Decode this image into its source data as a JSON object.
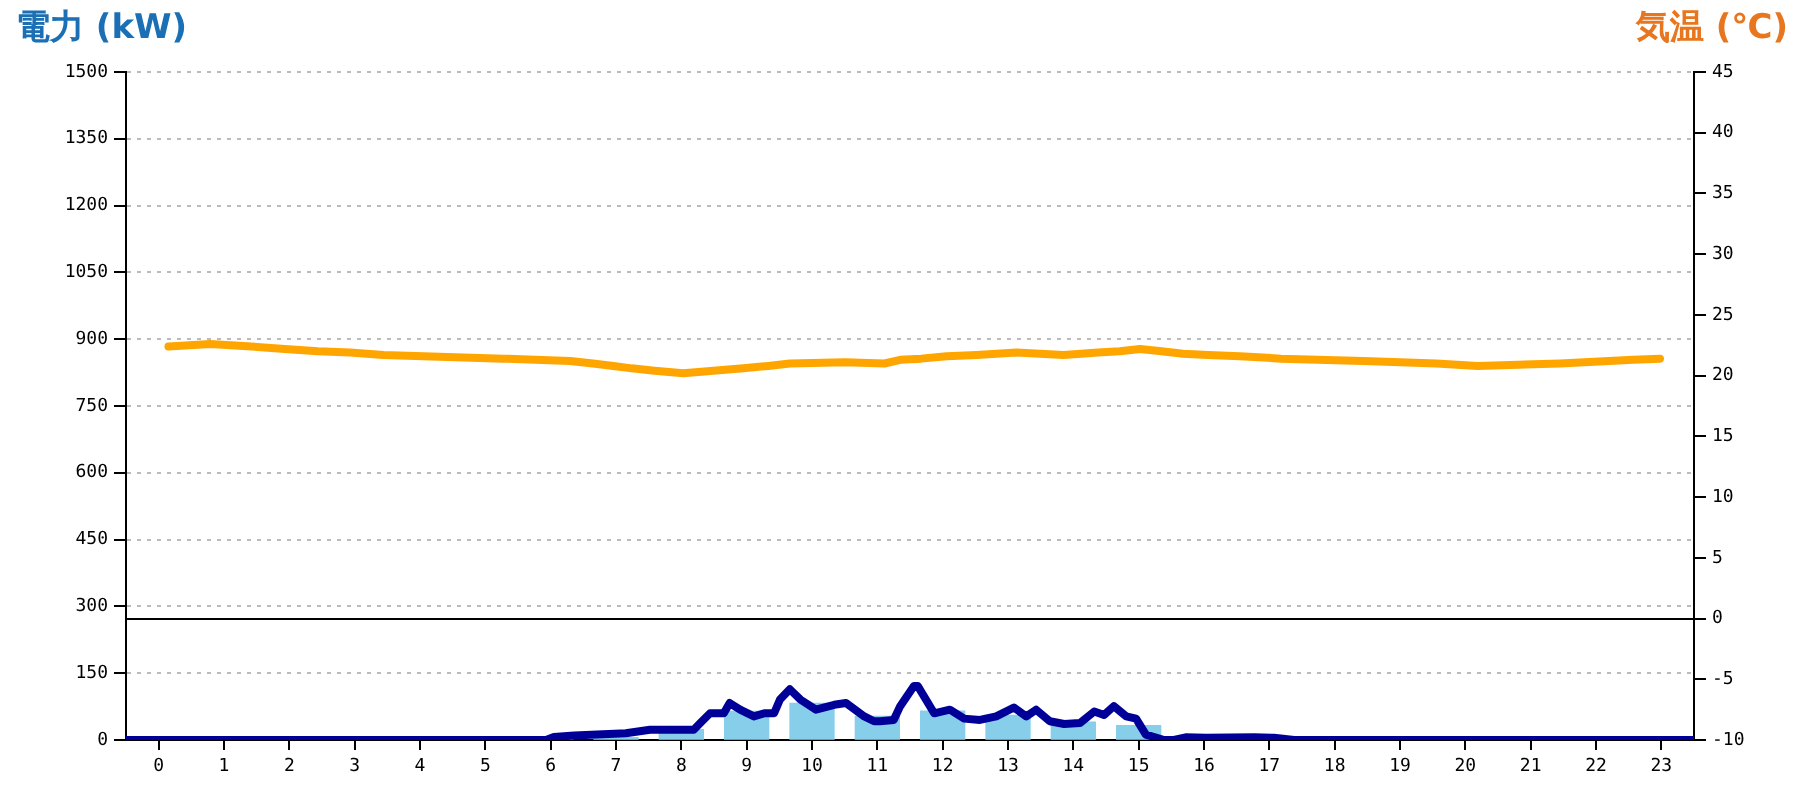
{
  "chart_data": {
    "type": "bar",
    "ylabel": "電力 (kW)",
    "y2label": "気温 (℃)",
    "xlim": [
      -0.5,
      23.5
    ],
    "xticks": [
      0,
      1,
      2,
      3,
      4,
      5,
      6,
      7,
      8,
      9,
      10,
      11,
      12,
      13,
      14,
      15,
      16,
      17,
      18,
      19,
      20,
      21,
      22,
      23
    ],
    "ylim": [
      0,
      1500
    ],
    "yticks": [
      0,
      150,
      300,
      450,
      600,
      750,
      900,
      1050,
      1200,
      1350,
      1500
    ],
    "y2lim": [
      -10,
      45
    ],
    "y2ticks": [
      -10,
      -5,
      0,
      5,
      10,
      15,
      20,
      25,
      30,
      35,
      40,
      45
    ],
    "grid": "y",
    "marker": "none",
    "ref_lines": [
      {
        "axis": "y2",
        "value": 0,
        "color": "#000000"
      }
    ],
    "series": [
      {
        "color": "#87ceeb",
        "x": [
          0,
          1,
          2,
          3,
          4,
          5,
          6,
          7,
          8,
          9,
          10,
          11,
          12,
          13,
          14,
          15,
          16,
          17,
          18,
          19,
          20,
          21,
          22,
          23
        ],
        "values": [
          0,
          0,
          0,
          0,
          0,
          0,
          0,
          5,
          23,
          64,
          82,
          53,
          65,
          55,
          40,
          32,
          0,
          0,
          0,
          0,
          0,
          0,
          0,
          0
        ]
      },
      {
        "type": "line",
        "color": "#000099",
        "x": [
          -0.5,
          5.93,
          6.05,
          6.36,
          7.15,
          7.52,
          8.19,
          8.29,
          8.44,
          8.65,
          8.74,
          8.9,
          9.11,
          9.27,
          9.42,
          9.51,
          9.66,
          9.82,
          10.06,
          10.34,
          10.52,
          10.8,
          10.95,
          11.04,
          11.25,
          11.35,
          11.56,
          11.62,
          11.87,
          12.11,
          12.33,
          12.57,
          12.82,
          13.09,
          13.28,
          13.43,
          13.64,
          13.86,
          14.1,
          14.32,
          14.47,
          14.62,
          14.81,
          14.96,
          15.11,
          15.39,
          15.54,
          15.72,
          16.03,
          16.77,
          17.07,
          17.38,
          23.5
        ],
        "values": [
          0,
          0,
          7,
          10,
          15,
          23,
          23,
          38,
          60,
          60,
          83,
          68,
          53,
          60,
          60,
          91,
          114,
          91,
          68,
          79,
          83,
          53,
          42,
          42,
          45,
          76,
          121,
          121,
          60,
          68,
          48,
          45,
          53,
          73,
          53,
          68,
          42,
          36,
          38,
          64,
          56,
          76,
          53,
          48,
          12,
          0,
          0,
          6,
          5,
          6,
          5,
          0,
          0
        ]
      },
      {
        "type": "line",
        "color": "#ffa500",
        "axis": "y2",
        "x": [
          0.15,
          0.79,
          1.42,
          1.93,
          2.44,
          2.93,
          3.44,
          4.05,
          5.28,
          6.3,
          6.65,
          6.96,
          7.24,
          7.59,
          8.03,
          8.49,
          8.95,
          9.33,
          9.66,
          10.51,
          11.11,
          11.35,
          11.67,
          12.06,
          12.52,
          13.13,
          13.85,
          14.38,
          14.71,
          15.02,
          15.35,
          15.68,
          16.06,
          16.55,
          17.18,
          18.44,
          19.56,
          20.19,
          21.45,
          22.57,
          22.98
        ],
        "values": [
          22.4,
          22.6,
          22.4,
          22.2,
          22.0,
          21.9,
          21.7,
          21.6,
          21.4,
          21.2,
          21.0,
          20.8,
          20.6,
          20.4,
          20.2,
          20.4,
          20.6,
          20.8,
          21.0,
          21.1,
          21.0,
          21.3,
          21.4,
          21.6,
          21.7,
          21.9,
          21.7,
          21.9,
          22.0,
          22.2,
          22.0,
          21.8,
          21.7,
          21.6,
          21.4,
          21.2,
          21.0,
          20.8,
          21.0,
          21.3,
          21.4
        ]
      }
    ]
  }
}
